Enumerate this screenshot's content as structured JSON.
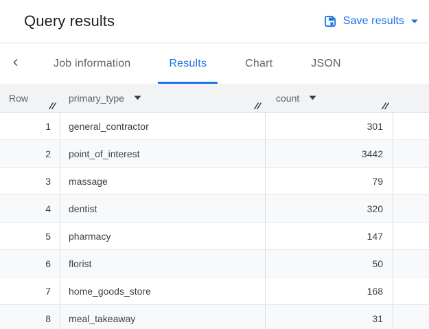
{
  "header": {
    "title": "Query results",
    "save_results": {
      "label": "Save results",
      "icon": "floppy-save-icon",
      "caret_icon": "caret-down-icon"
    }
  },
  "tab_bar": {
    "back_icon": "chevron-left-icon",
    "tabs": [
      {
        "label": "Job information",
        "active": false
      },
      {
        "label": "Results",
        "active": true
      },
      {
        "label": "Chart",
        "active": false
      },
      {
        "label": "JSON",
        "active": false
      }
    ],
    "active_tab": "Results"
  },
  "table": {
    "columns": [
      {
        "label": "Row",
        "sortable": false,
        "resize_icon": "column-resize-icon"
      },
      {
        "label": "primary_type",
        "sortable": true,
        "sort_icon": "caret-down-icon",
        "resize_icon": "column-resize-icon"
      },
      {
        "label": "count",
        "sortable": true,
        "sort_icon": "caret-down-icon",
        "resize_icon": "column-resize-icon"
      }
    ],
    "rows": [
      {
        "row": "1",
        "primary_type": "general_contractor",
        "count": "301"
      },
      {
        "row": "2",
        "primary_type": "point_of_interest",
        "count": "3442"
      },
      {
        "row": "3",
        "primary_type": "massage",
        "count": "79"
      },
      {
        "row": "4",
        "primary_type": "dentist",
        "count": "320"
      },
      {
        "row": "5",
        "primary_type": "pharmacy",
        "count": "147"
      },
      {
        "row": "6",
        "primary_type": "florist",
        "count": "50"
      },
      {
        "row": "7",
        "primary_type": "home_goods_store",
        "count": "168"
      },
      {
        "row": "8",
        "primary_type": "meal_takeaway",
        "count": "31"
      }
    ]
  },
  "colors": {
    "accent_blue": "#1a73e8",
    "title_text": "#202124",
    "secondary_text": "#5f6368",
    "cell_text": "#3c4043",
    "table_header_bg": "#f1f3f4",
    "row_alt_bg": "#f8f9fa",
    "column_border": "#dadce0",
    "row_border": "#e4e6e9"
  }
}
